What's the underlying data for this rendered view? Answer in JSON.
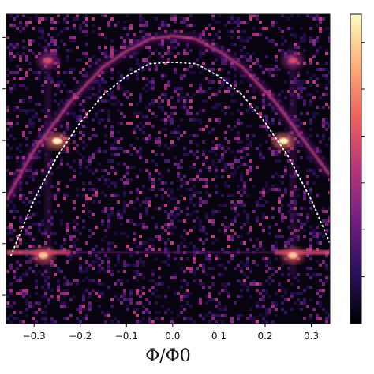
{
  "chart_data": {
    "type": "heatmap",
    "title": "",
    "xlabel": "Φ/Φ0",
    "ylabel": "",
    "xlim": [
      -0.36,
      0.34
    ],
    "x_ticks": [
      -0.3,
      -0.2,
      -0.1,
      0.0,
      0.1,
      0.2,
      0.3
    ],
    "x_tick_labels": [
      "−0.3",
      "−0.2",
      "−0.1",
      "0.0",
      "0.1",
      "0.2",
      "0.3"
    ],
    "y_tick_count": 6,
    "colormap": "magma",
    "colorbar_stops": [
      "#000004",
      "#2c105c",
      "#711f81",
      "#b63679",
      "#ee605e",
      "#fdae78",
      "#fcfdbf"
    ],
    "features": {
      "measured_arc": {
        "points": [
          [
            -0.36,
            0.6
          ],
          [
            -0.3,
            0.44
          ],
          [
            -0.22,
            0.28
          ],
          [
            -0.15,
            0.17
          ],
          [
            -0.1,
            0.12
          ],
          [
            -0.05,
            0.08
          ],
          [
            0.0,
            0.07
          ],
          [
            0.05,
            0.08
          ],
          [
            0.1,
            0.12
          ],
          [
            0.15,
            0.17
          ],
          [
            0.22,
            0.28
          ],
          [
            0.3,
            0.44
          ],
          [
            0.34,
            0.52
          ]
        ],
        "color": "#c2407a"
      },
      "theory_dotted_curve": {
        "points": [
          [
            -0.35,
            0.78
          ],
          [
            -0.3,
            0.6
          ],
          [
            -0.25,
            0.46
          ],
          [
            -0.2,
            0.35
          ],
          [
            -0.15,
            0.26
          ],
          [
            -0.1,
            0.2
          ],
          [
            -0.05,
            0.16
          ],
          [
            0.0,
            0.155
          ],
          [
            0.05,
            0.16
          ],
          [
            0.1,
            0.2
          ],
          [
            0.15,
            0.26
          ],
          [
            0.2,
            0.35
          ],
          [
            0.25,
            0.46
          ],
          [
            0.3,
            0.6
          ],
          [
            0.34,
            0.74
          ]
        ],
        "color": "#ffffff",
        "style": "dotted"
      },
      "bright_spots": [
        {
          "x": -0.28,
          "y": 0.78,
          "intensity": 0.9
        },
        {
          "x": 0.26,
          "y": 0.78,
          "intensity": 0.9
        },
        {
          "x": -0.25,
          "y": 0.41,
          "intensity": 1.0
        },
        {
          "x": 0.24,
          "y": 0.41,
          "intensity": 1.0
        },
        {
          "x": -0.27,
          "y": 0.15,
          "intensity": 0.6
        },
        {
          "x": 0.26,
          "y": 0.15,
          "intensity": 0.6
        }
      ]
    }
  }
}
